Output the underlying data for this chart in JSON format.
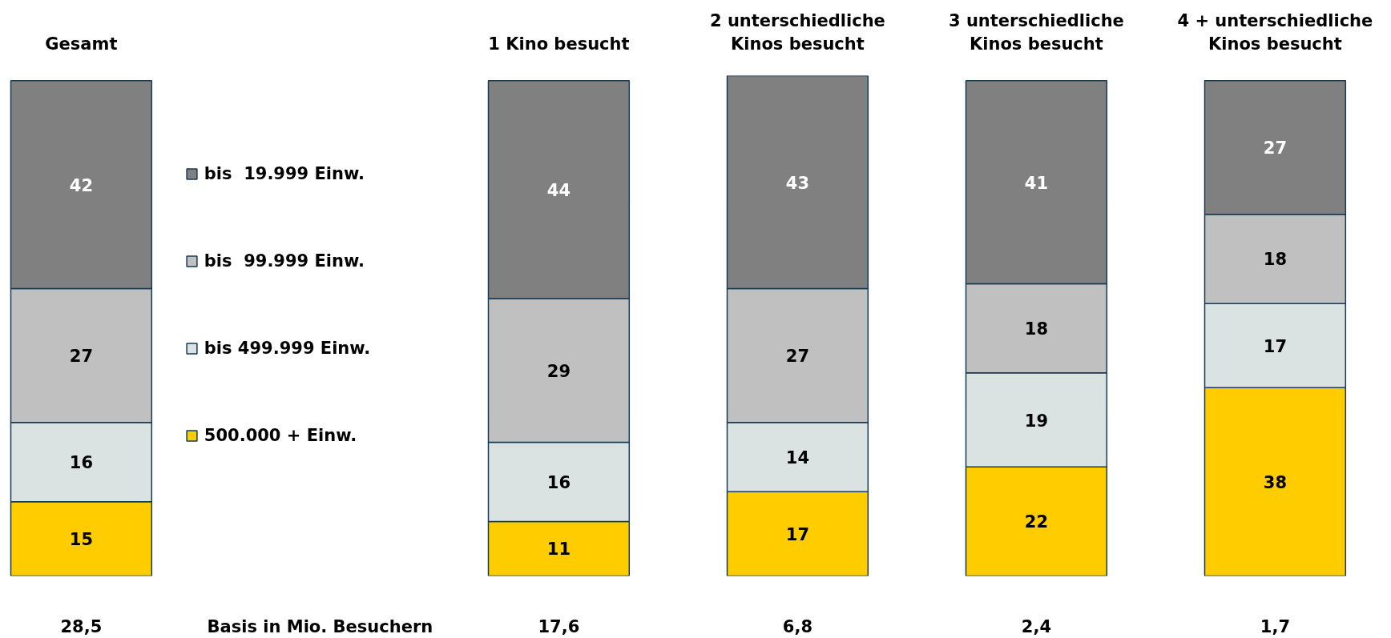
{
  "chart_data": {
    "type": "bar",
    "stacked": true,
    "categories": [
      "Gesamt",
      null,
      "1 Kino besucht",
      "2 unterschiedliche Kinos besucht",
      "3 unterschiedliche Kinos besucht",
      "4 + unterschiedliche Kinos besucht"
    ],
    "series": [
      {
        "name": "500.000 + Einw.",
        "color": "#ffcc00",
        "values": [
          15,
          null,
          11,
          17,
          22,
          38
        ]
      },
      {
        "name": "bis 499.999 Einw.",
        "color": "#dae2e2",
        "values": [
          16,
          null,
          16,
          14,
          19,
          17
        ]
      },
      {
        "name": "bis  99.999 Einw.",
        "color": "#c0c0c0",
        "values": [
          27,
          null,
          29,
          27,
          18,
          18
        ]
      },
      {
        "name": "bis  19.999 Einw.",
        "color": "#808080",
        "values": [
          42,
          null,
          44,
          43,
          41,
          27
        ]
      }
    ],
    "data_labels": true,
    "legend": "left",
    "annotations": [
      "28,5",
      "Basis in Mio. Besuchern",
      "17,6",
      "6,8",
      "2,4",
      "1,7"
    ]
  }
}
